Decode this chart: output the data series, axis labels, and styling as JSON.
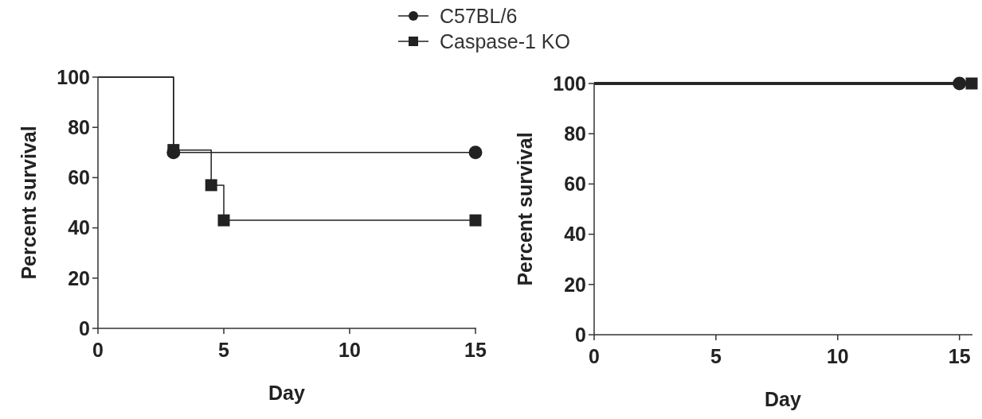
{
  "chart_data": [
    {
      "type": "step",
      "xlabel": "Day",
      "ylabel": "Percent survival",
      "xlim": [
        0,
        15
      ],
      "ylim": [
        0,
        100
      ],
      "xticks": [
        0,
        5,
        10,
        15
      ],
      "yticks": [
        0,
        20,
        40,
        60,
        80,
        100
      ],
      "grid": false,
      "legend": "top",
      "series": [
        {
          "name": "C57BL/6",
          "color": "#222222",
          "marker": "circle",
          "x": [
            0,
            3,
            15
          ],
          "values": [
            100,
            70,
            70
          ]
        },
        {
          "name": "Caspase-1 KO",
          "color": "#222222",
          "marker": "square",
          "x": [
            0,
            3,
            4.5,
            5,
            15
          ],
          "values": [
            100,
            71,
            57,
            43,
            43
          ]
        }
      ]
    },
    {
      "type": "step",
      "xlabel": "Day",
      "ylabel": "Percent survival",
      "xlim": [
        0,
        15.5
      ],
      "ylim": [
        0,
        100
      ],
      "xticks": [
        0,
        5,
        10,
        15
      ],
      "yticks": [
        0,
        20,
        40,
        60,
        80,
        100
      ],
      "grid": false,
      "series": [
        {
          "color": "#222222",
          "marker": "circle",
          "x": [
            0,
            15
          ],
          "values": [
            100,
            100
          ]
        },
        {
          "color": "#222222",
          "marker": "square",
          "x": [
            0,
            15.5
          ],
          "values": [
            100,
            100
          ]
        }
      ]
    }
  ]
}
